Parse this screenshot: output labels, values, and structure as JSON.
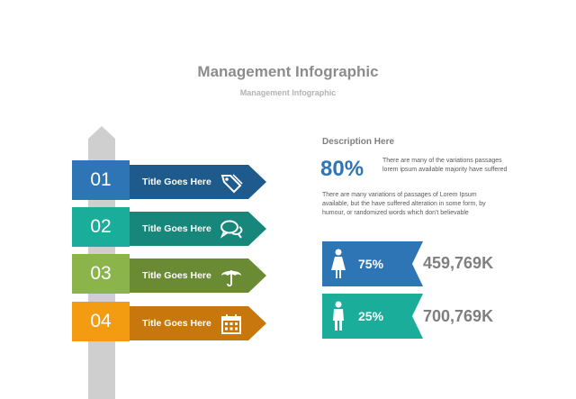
{
  "header": {
    "title": "Management Infographic",
    "subtitle": "Management Infographic"
  },
  "signs": [
    {
      "number": "01",
      "label": "Title Goes Here",
      "icon": "price-tag-icon",
      "num_color": "#2e75b6",
      "arrow_color": "#1f5a8c"
    },
    {
      "number": "02",
      "label": "Title Goes Here",
      "icon": "speech-bubbles-icon",
      "num_color": "#1aae9a",
      "arrow_color": "#16877a"
    },
    {
      "number": "03",
      "label": "Title Goes Here",
      "icon": "umbrella-icon",
      "num_color": "#8bb54a",
      "arrow_color": "#6a8a33"
    },
    {
      "number": "04",
      "label": "Title Goes Here",
      "icon": "calendar-icon",
      "num_color": "#f39c12",
      "arrow_color": "#c7770c"
    }
  ],
  "description": {
    "heading": "Description Here",
    "big_percent": "80%",
    "percent_text": "There are many of the variations passages lorem ipsum available majority have suffered",
    "body": "There are many variations of passages  of Lorem Ipsum available, but the have suffered alteration in some  form, by humour, or randomized words  which  don't believable"
  },
  "stats": [
    {
      "percent": "75%",
      "value": "459,769K",
      "icon": "female-icon",
      "color": "#2e75b6"
    },
    {
      "percent": "25%",
      "value": "700,769K",
      "icon": "male-icon",
      "color": "#1aae9a"
    }
  ]
}
